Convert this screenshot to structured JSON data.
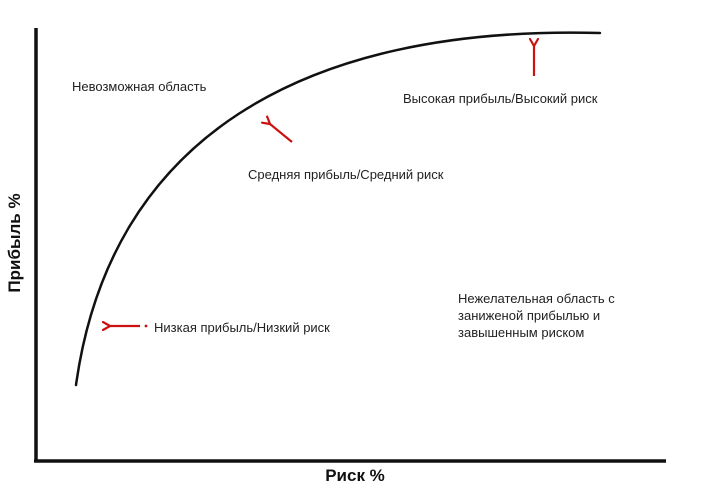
{
  "axes": {
    "x_title": "Риск %",
    "y_title": "Прибыль %"
  },
  "regions": {
    "impossible": "Невозможная область",
    "undesirable": "Нежелательная область с\nзаниженой прибылью и\nзавышенным риском"
  },
  "points": {
    "high": "Высокая прибыль/Высокий риск",
    "medium": "Средняя прибыль/Средний риск",
    "low": "Низкая прибыль/Низкий риск"
  },
  "colors": {
    "curve": "#111111",
    "axis": "#111111",
    "arrow": "#cc1111"
  }
}
